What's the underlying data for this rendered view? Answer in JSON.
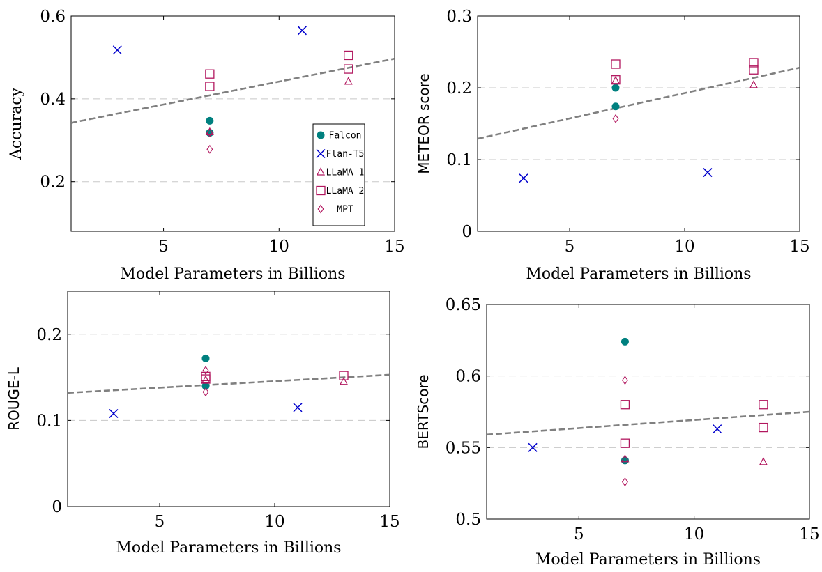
{
  "colors": {
    "falcon": "#00807f",
    "flan": "#0000cc",
    "llama": "#b2175f",
    "trend": "#808080",
    "grid": "#c8c8c8"
  },
  "legend": [
    "Falcon",
    "Flan-T5",
    "LLaMA 1",
    "LLaMA 2",
    "MPT"
  ],
  "chart_data": [
    {
      "type": "scatter",
      "xlabel": "Model Parameters in Billions",
      "ylabel": "Accuracy",
      "xlim": [
        1,
        15
      ],
      "ylim": [
        0.08,
        0.6
      ],
      "xticks": [
        5,
        10,
        15
      ],
      "yticks": [
        0.2,
        0.4,
        0.6
      ],
      "ytick_labels": [
        "0.2",
        "0.4",
        "0.6"
      ],
      "grid_y": [
        0.2,
        0.4
      ],
      "legend_position": "lower-right",
      "trend": [
        [
          1,
          0.342
        ],
        [
          15,
          0.497
        ]
      ],
      "series": [
        {
          "name": "Falcon",
          "marker": "circle",
          "points": [
            [
              7,
              0.347
            ],
            [
              7,
              0.318
            ]
          ]
        },
        {
          "name": "Flan-T5",
          "marker": "x",
          "points": [
            [
              3,
              0.518
            ],
            [
              11,
              0.565
            ]
          ]
        },
        {
          "name": "LLaMA 1",
          "marker": "triangle",
          "points": [
            [
              7,
              0.32
            ],
            [
              13,
              0.442
            ]
          ]
        },
        {
          "name": "LLaMA 2",
          "marker": "square",
          "points": [
            [
              7,
              0.46
            ],
            [
              7,
              0.43
            ],
            [
              13,
              0.505
            ],
            [
              13,
              0.472
            ]
          ]
        },
        {
          "name": "MPT",
          "marker": "diamond",
          "points": [
            [
              7,
              0.318
            ],
            [
              7,
              0.278
            ]
          ]
        }
      ]
    },
    {
      "type": "scatter",
      "xlabel": "Model Parameters in Billions",
      "ylabel": "METEOR score",
      "xlim": [
        1,
        15
      ],
      "ylim": [
        0,
        0.3
      ],
      "xticks": [
        5,
        10,
        15
      ],
      "yticks": [
        0,
        0.1,
        0.2,
        0.3
      ],
      "ytick_labels": [
        "0",
        "0.1",
        "0.2",
        "0.3"
      ],
      "grid_y": [
        0.1,
        0.2
      ],
      "trend": [
        [
          1,
          0.129
        ],
        [
          15,
          0.228
        ]
      ],
      "series": [
        {
          "name": "Falcon",
          "marker": "circle",
          "points": [
            [
              7,
              0.2
            ],
            [
              7,
              0.174
            ]
          ]
        },
        {
          "name": "Flan-T5",
          "marker": "x",
          "points": [
            [
              3,
              0.074
            ],
            [
              11,
              0.082
            ]
          ]
        },
        {
          "name": "LLaMA 1",
          "marker": "triangle",
          "points": [
            [
              7,
              0.21
            ],
            [
              13,
              0.204
            ]
          ]
        },
        {
          "name": "LLaMA 2",
          "marker": "square",
          "points": [
            [
              7,
              0.233
            ],
            [
              7,
              0.211
            ],
            [
              13,
              0.235
            ],
            [
              13,
              0.225
            ]
          ]
        },
        {
          "name": "MPT",
          "marker": "diamond",
          "points": [
            [
              7,
              0.157
            ]
          ]
        }
      ]
    },
    {
      "type": "scatter",
      "xlabel": "Model Parameters in Billions",
      "ylabel": "ROUGE-L",
      "xlim": [
        1,
        15
      ],
      "ylim": [
        0,
        0.25
      ],
      "xticks": [
        5,
        10,
        15
      ],
      "yticks": [
        0,
        0.1,
        0.2
      ],
      "ytick_labels": [
        "0",
        "0.1",
        "0.2"
      ],
      "grid_y": [
        0.1,
        0.2
      ],
      "trend": [
        [
          1,
          0.132
        ],
        [
          15,
          0.153
        ]
      ],
      "series": [
        {
          "name": "Falcon",
          "marker": "circle",
          "points": [
            [
              7,
              0.172
            ],
            [
              7,
              0.14
            ]
          ]
        },
        {
          "name": "Flan-T5",
          "marker": "x",
          "points": [
            [
              3,
              0.108
            ],
            [
              11,
              0.115
            ]
          ]
        },
        {
          "name": "LLaMA 1",
          "marker": "triangle",
          "points": [
            [
              7,
              0.147
            ],
            [
              13,
              0.145
            ]
          ]
        },
        {
          "name": "LLaMA 2",
          "marker": "square",
          "points": [
            [
              7,
              0.151
            ],
            [
              7,
              0.148
            ],
            [
              13,
              0.152
            ]
          ]
        },
        {
          "name": "MPT",
          "marker": "diamond",
          "points": [
            [
              7,
              0.158
            ],
            [
              7,
              0.133
            ]
          ]
        }
      ]
    },
    {
      "type": "scatter",
      "xlabel": "Model Parameters in Billions",
      "ylabel": "BERTScore",
      "xlim": [
        1,
        15
      ],
      "ylim": [
        0.5,
        0.65
      ],
      "xticks": [
        5,
        10,
        15
      ],
      "yticks": [
        0.5,
        0.55,
        0.6,
        0.65
      ],
      "ytick_labels": [
        "0.5",
        "0.55",
        "0.6",
        "0.65"
      ],
      "grid_y": [
        0.55,
        0.6
      ],
      "trend": [
        [
          1,
          0.559
        ],
        [
          15,
          0.575
        ]
      ],
      "series": [
        {
          "name": "Falcon",
          "marker": "circle",
          "points": [
            [
              7,
              0.624
            ],
            [
              7,
              0.541
            ]
          ]
        },
        {
          "name": "Flan-T5",
          "marker": "x",
          "points": [
            [
              3,
              0.55
            ],
            [
              11,
              0.563
            ]
          ]
        },
        {
          "name": "LLaMA 1",
          "marker": "triangle",
          "points": [
            [
              7,
              0.542
            ],
            [
              13,
              0.54
            ]
          ]
        },
        {
          "name": "LLaMA 2",
          "marker": "square",
          "points": [
            [
              7,
              0.58
            ],
            [
              7,
              0.553
            ],
            [
              13,
              0.58
            ],
            [
              13,
              0.564
            ]
          ]
        },
        {
          "name": "MPT",
          "marker": "diamond",
          "points": [
            [
              7,
              0.597
            ],
            [
              7,
              0.526
            ]
          ]
        }
      ]
    }
  ]
}
